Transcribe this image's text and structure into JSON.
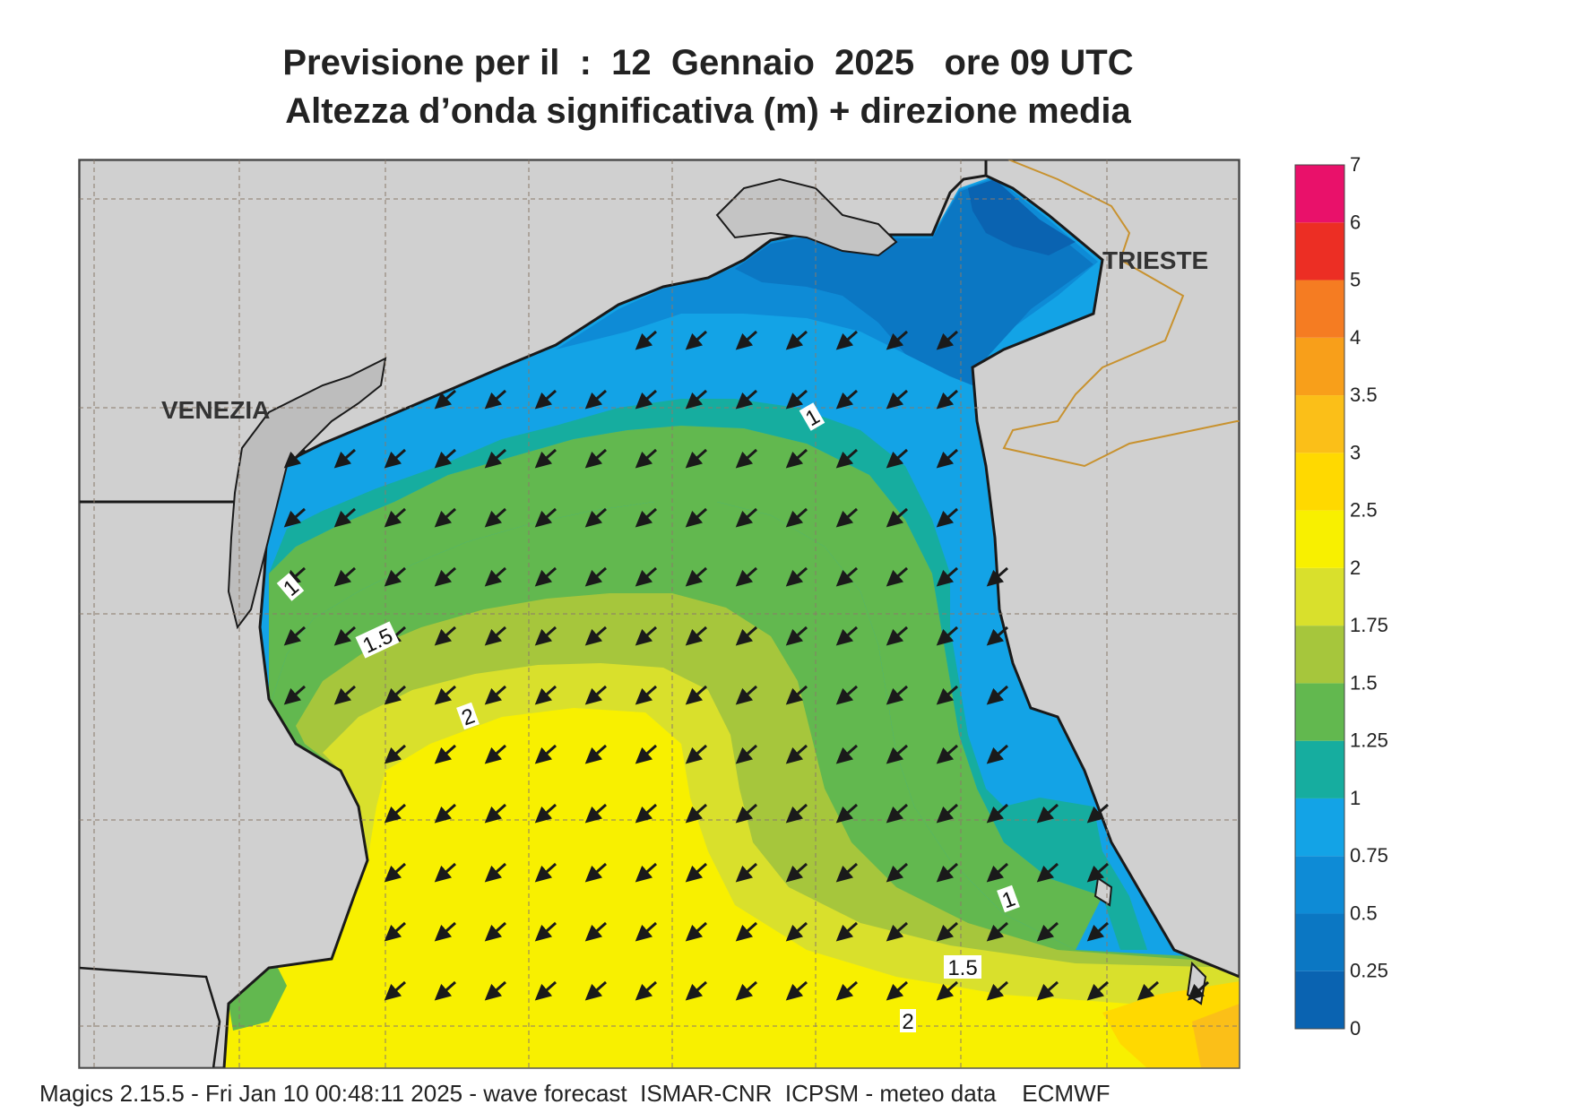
{
  "title": {
    "line1": "Previsione per il  :  12  Gennaio  2025   ore 09 UTC",
    "line2": "Altezza d’onda significativa (m) + direzione media"
  },
  "cities": {
    "venezia": "VENEZIA",
    "trieste": "TRIESTE"
  },
  "contour_labels": {
    "c1_north": "1",
    "c1_west": "1",
    "c15_west": "1.5",
    "c2_west": "2",
    "c1_east": "1",
    "c15_south": "1.5",
    "c2_south": "2"
  },
  "legend": {
    "labels": [
      "0",
      "0.25",
      "0.5",
      "0.75",
      "1",
      "1.25",
      "1.5",
      "1.75",
      "2",
      "2.5",
      "3",
      "3.5",
      "4",
      "5",
      "6",
      "7"
    ],
    "colors": [
      "#0a63b1",
      "#0b77c3",
      "#0e8bd6",
      "#13a3e6",
      "#16ad9f",
      "#62b84f",
      "#a6c63c",
      "#d9e02c",
      "#f8f000",
      "#ffd900",
      "#fbbf18",
      "#f89f1a",
      "#f57c22",
      "#ec2e24",
      "#e9116a"
    ]
  },
  "footer": "Magics 2.15.5 - Fri Jan 10 00:48:11 2025 - wave forecast  ISMAR-CNR  ICPSM - meteo data    ECMWF",
  "wave_direction": "from NE toward SW",
  "colors": {
    "land": "#d0d0d0",
    "coast": "#1a1a1a",
    "border": "#c8922f"
  }
}
